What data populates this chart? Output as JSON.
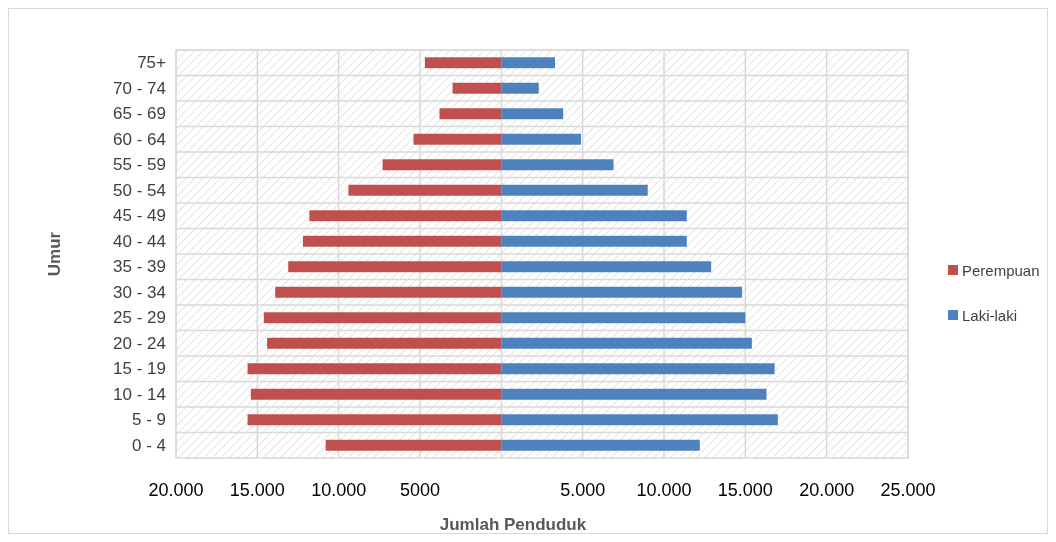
{
  "chart_data": {
    "type": "bar",
    "orientation": "horizontal",
    "categories": [
      "75+",
      "70 - 74",
      "65 - 69",
      "60 - 64",
      "55 - 59",
      "50 - 54",
      "45 - 49",
      "40 - 44",
      "35 - 39",
      "30 - 34",
      "25 - 29",
      "20 - 24",
      "15 - 19",
      "10 - 14",
      "5 - 9",
      "0 - 4"
    ],
    "series": [
      {
        "name": "Perempuan",
        "color": "#c0504d",
        "values": [
          -4700,
          -3000,
          -3800,
          -5400,
          -7300,
          -9400,
          -11800,
          -12200,
          -13100,
          -13900,
          -14600,
          -14400,
          -15600,
          -15400,
          -15600,
          -10800
        ]
      },
      {
        "name": "Laki-laki",
        "color": "#4f81bd",
        "values": [
          3300,
          2300,
          3800,
          4900,
          6900,
          9000,
          11400,
          11400,
          12900,
          14800,
          15000,
          15400,
          16800,
          16300,
          17000,
          12200
        ]
      }
    ],
    "xlim": [
      -20000,
      25000
    ],
    "xticks": [
      {
        "value": -20000,
        "label": "20.000"
      },
      {
        "value": -15000,
        "label": "15.000"
      },
      {
        "value": -10000,
        "label": "10.000"
      },
      {
        "value": -5000,
        "label": "5000"
      },
      {
        "value": 0,
        "label": null
      },
      {
        "value": 5000,
        "label": "5.000"
      },
      {
        "value": 10000,
        "label": "10.000"
      },
      {
        "value": 15000,
        "label": "15.000"
      },
      {
        "value": 20000,
        "label": "20.000"
      },
      {
        "value": 25000,
        "label": "25.000"
      }
    ],
    "xlabel": "Jumlah Penduduk",
    "ylabel": "Umur",
    "grid": true,
    "legend": "right",
    "stacked": true
  }
}
